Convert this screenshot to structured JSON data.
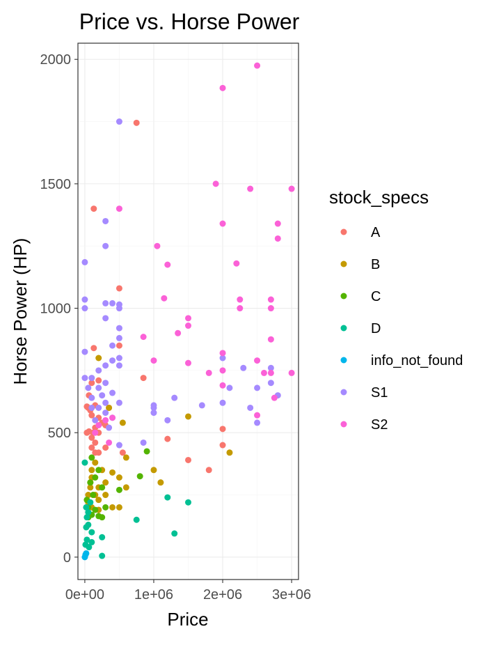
{
  "chart_data": {
    "type": "scatter",
    "title": "Price vs. Horse Power",
    "xlabel": "Price",
    "ylabel": "Horse Power (HP)",
    "xlim": [
      -100000,
      3100000
    ],
    "ylim": [
      -90,
      2065
    ],
    "xticks": [
      0,
      1000000,
      2000000,
      3000000
    ],
    "xtick_labels": [
      "0e+00",
      "1e+06",
      "2e+06",
      "3e+06"
    ],
    "yticks": [
      0,
      500,
      1000,
      1500,
      2000
    ],
    "ytick_labels": [
      "0",
      "500",
      "1000",
      "1500",
      "2000"
    ],
    "grid": true,
    "legend": {
      "title": "stock_specs",
      "position": "right"
    },
    "series": [
      {
        "name": "A",
        "color": "#F8766D",
        "points": [
          [
            750000,
            1745
          ],
          [
            130000,
            1400
          ],
          [
            500000,
            1080
          ],
          [
            500000,
            850
          ],
          [
            130000,
            840
          ],
          [
            850000,
            720
          ],
          [
            200000,
            710
          ],
          [
            100000,
            700
          ],
          [
            60000,
            650
          ],
          [
            150000,
            610
          ],
          [
            30000,
            605
          ],
          [
            50000,
            600
          ],
          [
            80000,
            590
          ],
          [
            100000,
            570
          ],
          [
            200000,
            560
          ],
          [
            250000,
            540
          ],
          [
            300000,
            530
          ],
          [
            150000,
            520
          ],
          [
            30000,
            500
          ],
          [
            60000,
            505
          ],
          [
            120000,
            500
          ],
          [
            200000,
            500
          ],
          [
            100000,
            480
          ],
          [
            150000,
            460
          ],
          [
            100000,
            440
          ],
          [
            150000,
            420
          ],
          [
            200000,
            420
          ],
          [
            300000,
            440
          ],
          [
            550000,
            420
          ],
          [
            2000000,
            515
          ],
          [
            2000000,
            450
          ],
          [
            1200000,
            475
          ],
          [
            1500000,
            390
          ],
          [
            1800000,
            350
          ],
          [
            350000,
            600
          ]
        ]
      },
      {
        "name": "B",
        "color": "#C49A00",
        "points": [
          [
            200000,
            800
          ],
          [
            350000,
            600
          ],
          [
            550000,
            540
          ],
          [
            1500000,
            565
          ],
          [
            2100000,
            420
          ],
          [
            1000000,
            350
          ],
          [
            1100000,
            300
          ],
          [
            600000,
            400
          ],
          [
            600000,
            280
          ],
          [
            500000,
            200
          ],
          [
            400000,
            200
          ],
          [
            300000,
            250
          ],
          [
            200000,
            280
          ],
          [
            100000,
            350
          ],
          [
            80000,
            300
          ],
          [
            50000,
            250
          ],
          [
            100000,
            200
          ],
          [
            200000,
            190
          ],
          [
            300000,
            300
          ],
          [
            150000,
            380
          ],
          [
            100000,
            320
          ],
          [
            50000,
            220
          ],
          [
            200000,
            230
          ],
          [
            400000,
            340
          ],
          [
            500000,
            320
          ],
          [
            30000,
            200
          ],
          [
            80000,
            280
          ],
          [
            150000,
            250
          ],
          [
            250000,
            350
          ]
        ]
      },
      {
        "name": "C",
        "color": "#53B400",
        "points": [
          [
            900000,
            425
          ],
          [
            800000,
            325
          ],
          [
            500000,
            270
          ],
          [
            300000,
            200
          ],
          [
            250000,
            160
          ],
          [
            200000,
            165
          ],
          [
            150000,
            190
          ],
          [
            100000,
            170
          ],
          [
            50000,
            200
          ],
          [
            30000,
            230
          ],
          [
            80000,
            300
          ],
          [
            150000,
            320
          ],
          [
            100000,
            400
          ],
          [
            200000,
            350
          ],
          [
            50000,
            160
          ],
          [
            120000,
            250
          ],
          [
            250000,
            280
          ]
        ]
      },
      {
        "name": "D",
        "color": "#00C094",
        "points": [
          [
            1200000,
            240
          ],
          [
            1500000,
            220
          ],
          [
            750000,
            150
          ],
          [
            1300000,
            95
          ],
          [
            250000,
            80
          ],
          [
            250000,
            5
          ],
          [
            100000,
            100
          ],
          [
            50000,
            130
          ],
          [
            30000,
            160
          ],
          [
            20000,
            200
          ],
          [
            50000,
            180
          ],
          [
            0,
            380
          ],
          [
            80000,
            220
          ],
          [
            10000,
            50
          ],
          [
            30000,
            70
          ],
          [
            60000,
            40
          ],
          [
            100000,
            60
          ],
          [
            20000,
            120
          ]
        ]
      },
      {
        "name": "info_not_found",
        "color": "#00B6EB",
        "points": [
          [
            0,
            0
          ],
          [
            10000,
            10
          ],
          [
            20000,
            15
          ]
        ]
      },
      {
        "name": "S1",
        "color": "#A58AFF",
        "points": [
          [
            500000,
            1750
          ],
          [
            300000,
            1350
          ],
          [
            300000,
            1250
          ],
          [
            0,
            1185
          ],
          [
            0,
            1035
          ],
          [
            300000,
            1020
          ],
          [
            400000,
            1020
          ],
          [
            500000,
            1015
          ],
          [
            0,
            1000
          ],
          [
            500000,
            1000
          ],
          [
            300000,
            960
          ],
          [
            500000,
            920
          ],
          [
            500000,
            880
          ],
          [
            400000,
            850
          ],
          [
            0,
            825
          ],
          [
            0,
            720
          ],
          [
            100000,
            720
          ],
          [
            200000,
            750
          ],
          [
            300000,
            770
          ],
          [
            400000,
            790
          ],
          [
            500000,
            800
          ],
          [
            500000,
            770
          ],
          [
            2000000,
            800
          ],
          [
            2300000,
            760
          ],
          [
            2700000,
            760
          ],
          [
            2800000,
            650
          ],
          [
            2700000,
            700
          ],
          [
            2500000,
            680
          ],
          [
            2400000,
            600
          ],
          [
            2500000,
            540
          ],
          [
            1000000,
            610
          ],
          [
            1000000,
            600
          ],
          [
            1300000,
            640
          ],
          [
            1200000,
            550
          ],
          [
            1700000,
            610
          ],
          [
            2000000,
            620
          ],
          [
            2100000,
            680
          ],
          [
            1000000,
            580
          ],
          [
            850000,
            460
          ],
          [
            500000,
            450
          ],
          [
            300000,
            620
          ],
          [
            100000,
            640
          ],
          [
            200000,
            680
          ],
          [
            300000,
            700
          ],
          [
            400000,
            660
          ],
          [
            500000,
            620
          ],
          [
            200000,
            600
          ],
          [
            300000,
            580
          ],
          [
            400000,
            560
          ],
          [
            150000,
            550
          ],
          [
            250000,
            650
          ],
          [
            350000,
            520
          ],
          [
            50000,
            680
          ],
          [
            100000,
            600
          ]
        ]
      },
      {
        "name": "S2",
        "color": "#FB61D7",
        "points": [
          [
            2500000,
            1975
          ],
          [
            2000000,
            1885
          ],
          [
            500000,
            1400
          ],
          [
            1900000,
            1500
          ],
          [
            2400000,
            1480
          ],
          [
            3000000,
            1480
          ],
          [
            2000000,
            1340
          ],
          [
            2800000,
            1340
          ],
          [
            2800000,
            1280
          ],
          [
            1050000,
            1250
          ],
          [
            2200000,
            1180
          ],
          [
            1200000,
            1175
          ],
          [
            1150000,
            1040
          ],
          [
            2250000,
            1035
          ],
          [
            2250000,
            1000
          ],
          [
            2700000,
            1035
          ],
          [
            2700000,
            1000
          ],
          [
            1500000,
            960
          ],
          [
            1500000,
            930
          ],
          [
            1350000,
            900
          ],
          [
            850000,
            885
          ],
          [
            2700000,
            875
          ],
          [
            2000000,
            820
          ],
          [
            2500000,
            790
          ],
          [
            1000000,
            790
          ],
          [
            1500000,
            780
          ],
          [
            1800000,
            740
          ],
          [
            2000000,
            750
          ],
          [
            2600000,
            740
          ],
          [
            2700000,
            740
          ],
          [
            3000000,
            740
          ],
          [
            2000000,
            690
          ],
          [
            2750000,
            640
          ],
          [
            2500000,
            570
          ],
          [
            400000,
            560
          ],
          [
            300000,
            550
          ],
          [
            200000,
            530
          ],
          [
            350000,
            460
          ],
          [
            150000,
            500
          ]
        ]
      }
    ]
  }
}
